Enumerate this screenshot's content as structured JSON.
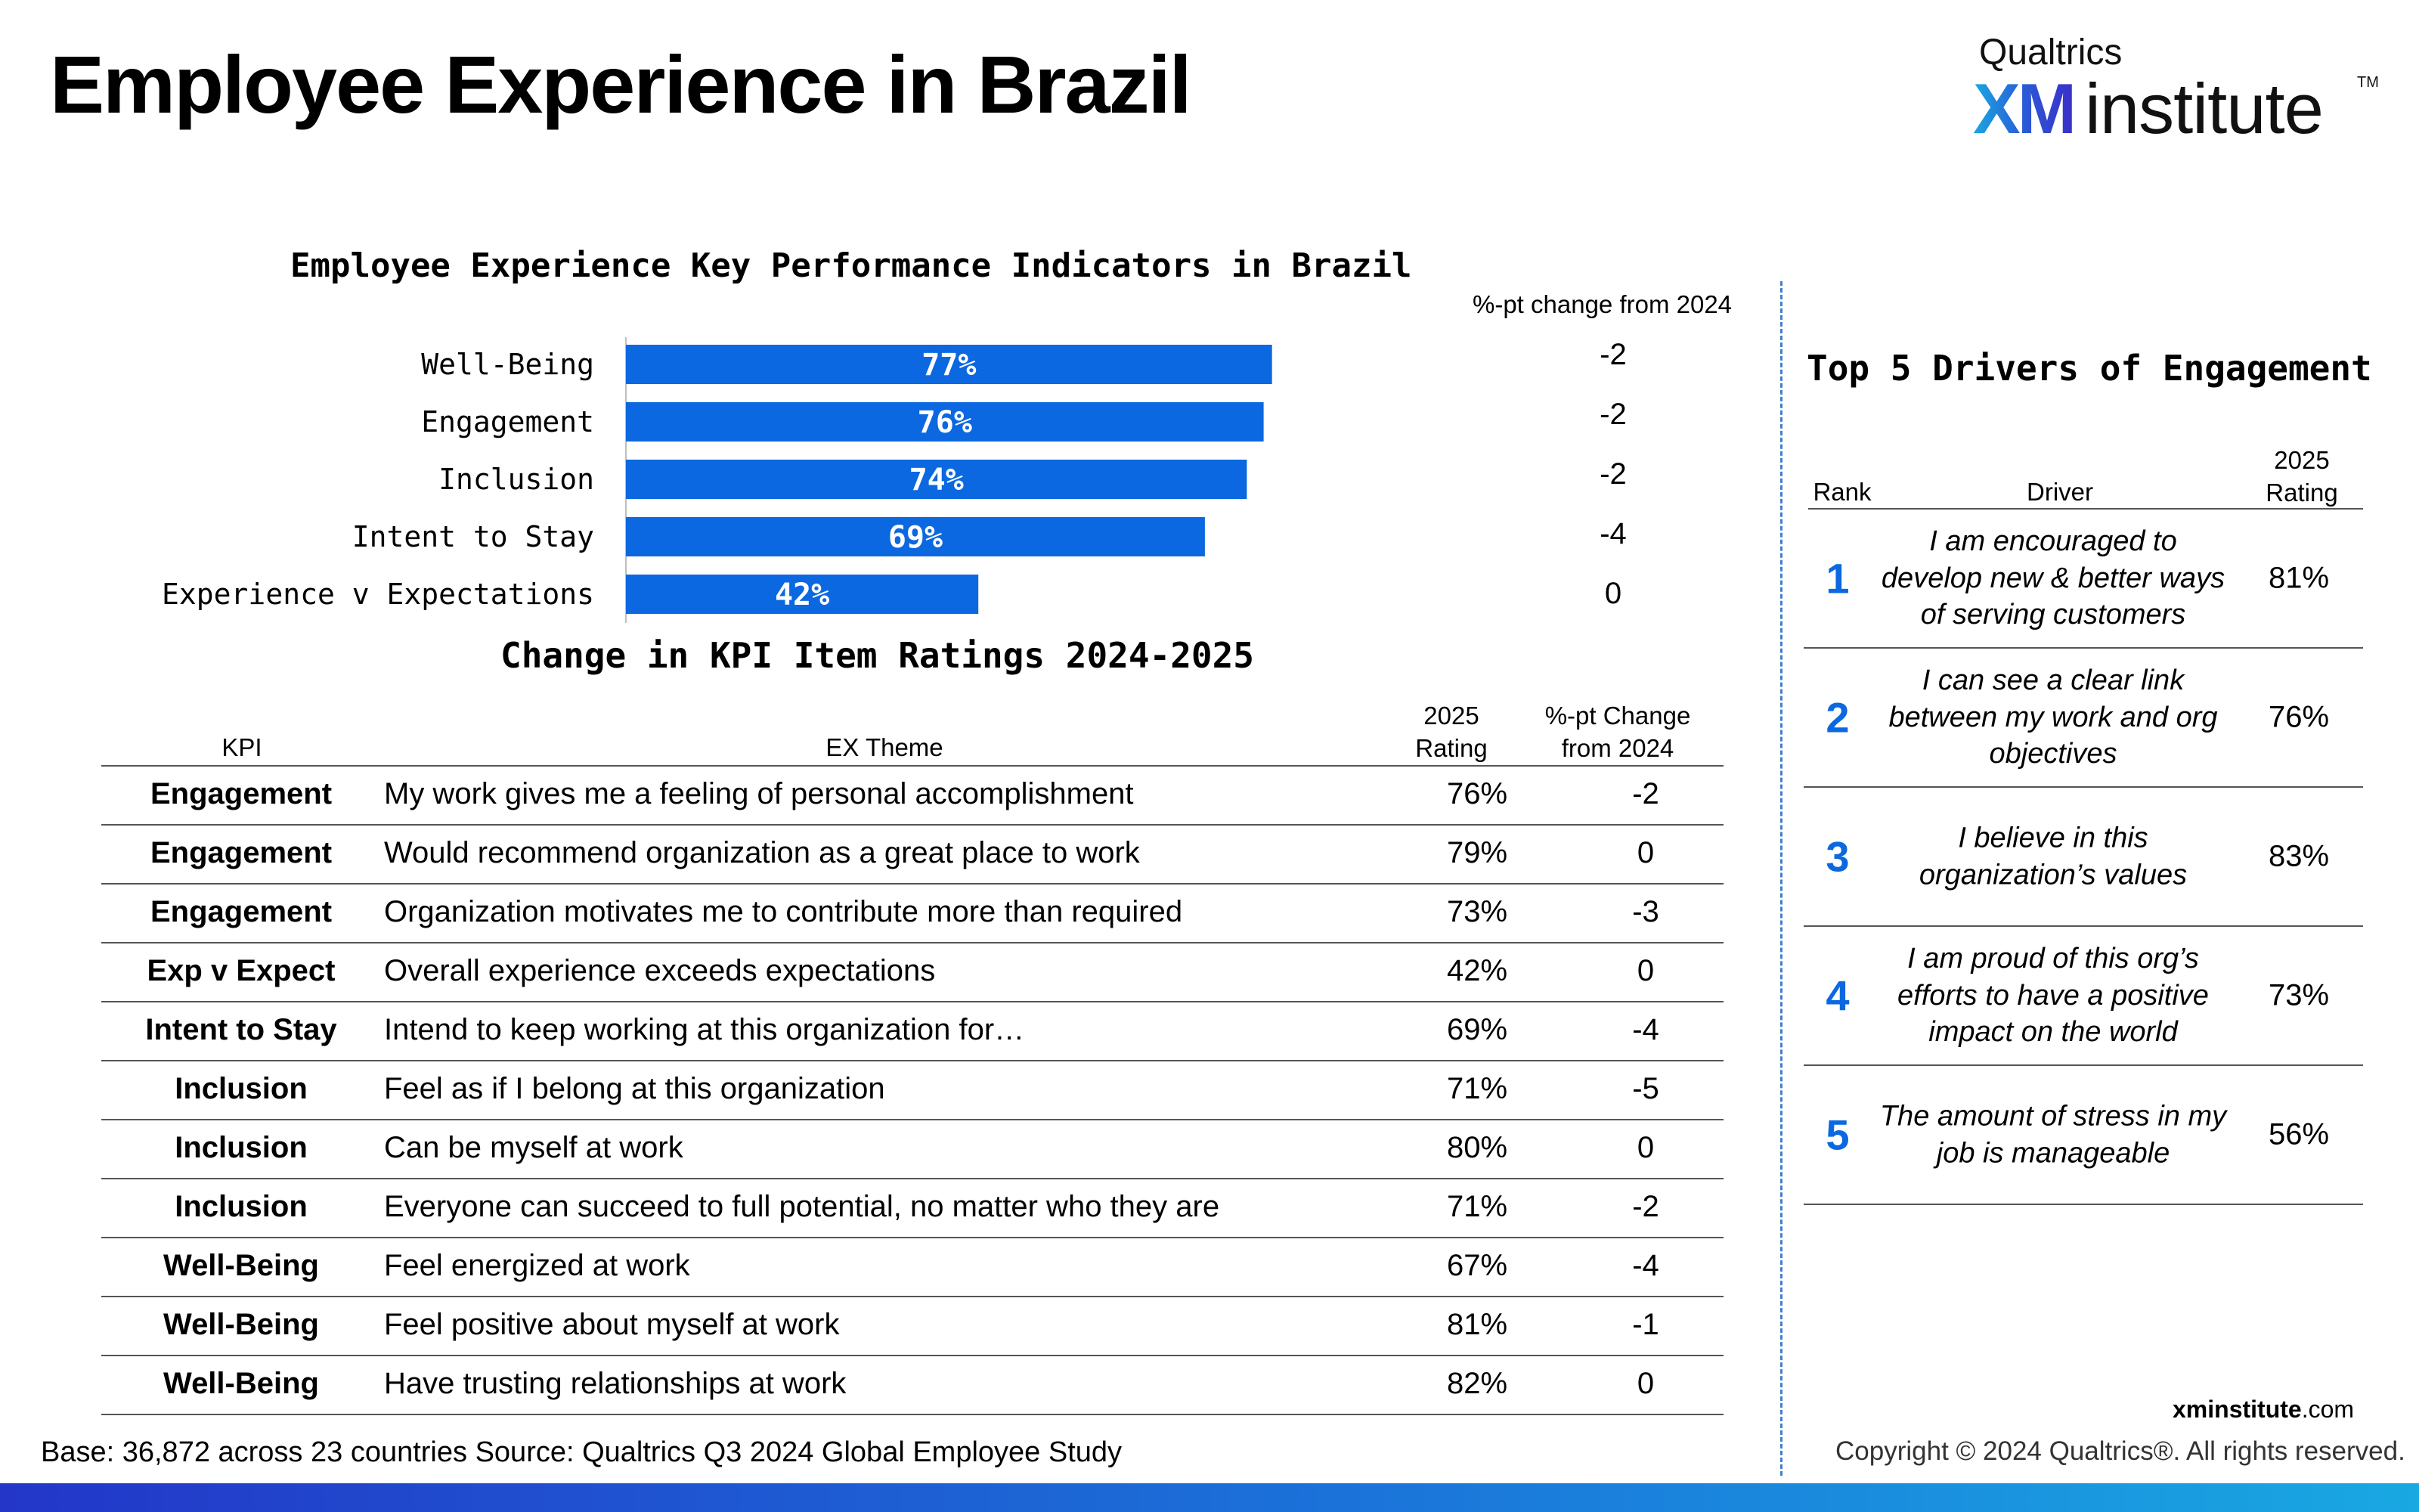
{
  "page": {
    "title": "Employee Experience in Brazil"
  },
  "logo": {
    "brand": "Qualtrics",
    "xm": "XM",
    "word": "institute",
    "tm": "TM"
  },
  "chart_data": {
    "type": "bar",
    "orientation": "horizontal",
    "title": "Employee Experience Key Performance Indicators in Brazil",
    "categories": [
      "Well-Being",
      "Engagement",
      "Inclusion",
      "Intent to Stay",
      "Experience v Expectations"
    ],
    "values": [
      77,
      76,
      74,
      69,
      42
    ],
    "value_labels": [
      "77%",
      "76%",
      "74%",
      "69%",
      "42%"
    ],
    "change_header": "%-pt change from 2024",
    "changes": [
      "-2",
      "-2",
      "-2",
      "-4",
      "0"
    ],
    "xlim": [
      0,
      100
    ],
    "bar_color": "#0b68e0",
    "grid": false,
    "legend": "none"
  },
  "kpi_table": {
    "title": "Change in KPI Item Ratings 2024-2025",
    "headers": {
      "kpi": "KPI",
      "theme": "EX Theme",
      "rating_line1": "2025",
      "rating_line2": "Rating",
      "change_line1": "%-pt Change",
      "change_line2": "from 2024"
    },
    "rows": [
      {
        "kpi": "Engagement",
        "theme": "My work gives me a feeling of personal accomplishment",
        "rating": "76%",
        "change": "-2"
      },
      {
        "kpi": "Engagement",
        "theme": "Would recommend organization as a great place to work",
        "rating": "79%",
        "change": "0"
      },
      {
        "kpi": "Engagement",
        "theme": "Organization motivates me to contribute more than required",
        "rating": "73%",
        "change": "-3"
      },
      {
        "kpi": "Exp v Expect",
        "theme": "Overall experience exceeds expectations",
        "rating": "42%",
        "change": "0"
      },
      {
        "kpi": "Intent to Stay",
        "theme": "Intend to keep working at this organization for…",
        "rating": "69%",
        "change": "-4"
      },
      {
        "kpi": "Inclusion",
        "theme": "Feel as if I belong at this organization",
        "rating": "71%",
        "change": "-5"
      },
      {
        "kpi": "Inclusion",
        "theme": "Can be myself at work",
        "rating": "80%",
        "change": "0"
      },
      {
        "kpi": "Inclusion",
        "theme": "Everyone can succeed to full potential, no matter who they are",
        "rating": "71%",
        "change": "-2"
      },
      {
        "kpi": "Well-Being",
        "theme": "Feel energized at work",
        "rating": "67%",
        "change": "-4"
      },
      {
        "kpi": "Well-Being",
        "theme": "Feel positive about myself at work",
        "rating": "81%",
        "change": "-1"
      },
      {
        "kpi": "Well-Being",
        "theme": "Have trusting relationships at work",
        "rating": "82%",
        "change": "0"
      }
    ]
  },
  "drivers": {
    "title": "Top 5 Drivers of Engagement",
    "headers": {
      "rank": "Rank",
      "driver": "Driver",
      "rating_line1": "2025",
      "rating_line2": "Rating"
    },
    "rows": [
      {
        "rank": "1",
        "driver": "I am encouraged to develop new & better ways of serving customers",
        "rating": "81%"
      },
      {
        "rank": "2",
        "driver": "I can see a clear link between my work and org objectives",
        "rating": "76%"
      },
      {
        "rank": "3",
        "driver": "I believe in this organization’s values",
        "rating": "83%"
      },
      {
        "rank": "4",
        "driver": "I am proud of this org’s efforts to have a positive impact on the world",
        "rating": "73%"
      },
      {
        "rank": "5",
        "driver": "The amount of stress in my job is manageable",
        "rating": "56%"
      }
    ]
  },
  "footer": {
    "base_label": "Base:",
    "base_text": " 36,872 across 23 countries ",
    "source_label": "Source:",
    "source_text": " Qualtrics Q3 2024 Global Employee Study",
    "site_bold": "xminstitute",
    "site_rest": ".com",
    "copyright": "Copyright © 2024 Qualtrics®. All rights reserved."
  },
  "colors": {
    "accent_blue": "#0b68e0",
    "divider": "#3f7fd0"
  }
}
